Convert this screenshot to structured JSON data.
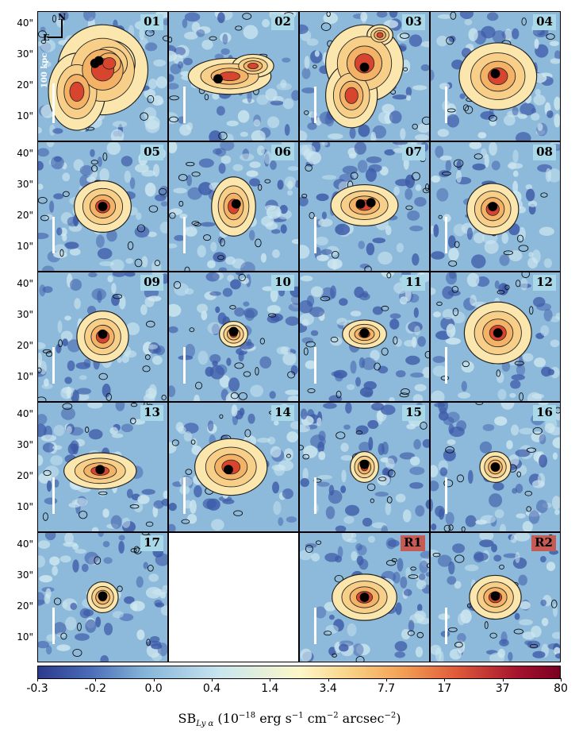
{
  "panels": [
    {
      "label": "01",
      "ref": false,
      "blob": [
        [
          0.5,
          0.45,
          0.35,
          0.35
        ],
        [
          0.3,
          0.62,
          0.22,
          0.3
        ],
        [
          0.55,
          0.4,
          0.2,
          0.18
        ]
      ],
      "core": [
        [
          0.47,
          0.38
        ],
        [
          0.44,
          0.4
        ]
      ],
      "blank": false
    },
    {
      "label": "02",
      "ref": false,
      "blob": [
        [
          0.47,
          0.5,
          0.32,
          0.14
        ],
        [
          0.65,
          0.42,
          0.16,
          0.09
        ]
      ],
      "core": [
        [
          0.38,
          0.52
        ]
      ],
      "blank": false
    },
    {
      "label": "03",
      "ref": false,
      "blob": [
        [
          0.5,
          0.4,
          0.3,
          0.3
        ],
        [
          0.4,
          0.65,
          0.2,
          0.25
        ],
        [
          0.62,
          0.18,
          0.1,
          0.08
        ]
      ],
      "core": [
        [
          0.5,
          0.43
        ]
      ],
      "blank": false
    },
    {
      "label": "04",
      "ref": false,
      "blob": [
        [
          0.52,
          0.5,
          0.3,
          0.26
        ]
      ],
      "core": [
        [
          0.5,
          0.48
        ]
      ],
      "blank": false
    },
    {
      "label": "05",
      "ref": false,
      "blob": [
        [
          0.5,
          0.5,
          0.22,
          0.2
        ]
      ],
      "core": [
        [
          0.5,
          0.5
        ]
      ],
      "blank": false
    },
    {
      "label": "06",
      "ref": false,
      "blob": [
        [
          0.5,
          0.5,
          0.17,
          0.23
        ]
      ],
      "core": [
        [
          0.52,
          0.48
        ]
      ],
      "blank": false
    },
    {
      "label": "07",
      "ref": false,
      "blob": [
        [
          0.5,
          0.49,
          0.26,
          0.16
        ]
      ],
      "core": [
        [
          0.47,
          0.48
        ],
        [
          0.55,
          0.47
        ]
      ],
      "blank": false
    },
    {
      "label": "08",
      "ref": false,
      "blob": [
        [
          0.48,
          0.52,
          0.2,
          0.2
        ]
      ],
      "core": [
        [
          0.48,
          0.5
        ]
      ],
      "blank": false
    },
    {
      "label": "09",
      "ref": false,
      "blob": [
        [
          0.5,
          0.5,
          0.2,
          0.2
        ]
      ],
      "core": [
        [
          0.5,
          0.48
        ]
      ],
      "blank": false
    },
    {
      "label": "10",
      "ref": false,
      "blob": [
        [
          0.5,
          0.48,
          0.11,
          0.1
        ]
      ],
      "core": [
        [
          0.5,
          0.46
        ]
      ],
      "blank": false
    },
    {
      "label": "11",
      "ref": false,
      "blob": [
        [
          0.5,
          0.48,
          0.17,
          0.11
        ]
      ],
      "core": [
        [
          0.5,
          0.47
        ]
      ],
      "blank": false
    },
    {
      "label": "12",
      "ref": false,
      "blob": [
        [
          0.52,
          0.47,
          0.26,
          0.24
        ]
      ],
      "core": [
        [
          0.52,
          0.47
        ]
      ],
      "blank": false
    },
    {
      "label": "13",
      "ref": false,
      "blob": [
        [
          0.48,
          0.53,
          0.28,
          0.14
        ]
      ],
      "core": [
        [
          0.48,
          0.52
        ]
      ],
      "blank": false
    },
    {
      "label": "14",
      "ref": false,
      "blob": [
        [
          0.48,
          0.5,
          0.28,
          0.22
        ]
      ],
      "core": [
        [
          0.46,
          0.52
        ]
      ],
      "blank": false
    },
    {
      "label": "15",
      "ref": false,
      "blob": [
        [
          0.5,
          0.5,
          0.11,
          0.12
        ]
      ],
      "core": [
        [
          0.5,
          0.48
        ]
      ],
      "blank": false
    },
    {
      "label": "16",
      "ref": false,
      "blob": [
        [
          0.5,
          0.5,
          0.12,
          0.12
        ]
      ],
      "core": [
        [
          0.5,
          0.5
        ]
      ],
      "blank": false
    },
    {
      "label": "17",
      "ref": false,
      "blob": [
        [
          0.5,
          0.5,
          0.12,
          0.12
        ]
      ],
      "core": [
        [
          0.5,
          0.49
        ]
      ],
      "blank": false
    },
    {
      "label": "",
      "ref": false,
      "blob": [],
      "core": [],
      "blank": true
    },
    {
      "label": "R1",
      "ref": true,
      "blob": [
        [
          0.5,
          0.5,
          0.25,
          0.18
        ]
      ],
      "core": [
        [
          0.5,
          0.5
        ]
      ],
      "blank": false
    },
    {
      "label": "R2",
      "ref": true,
      "blob": [
        [
          0.5,
          0.5,
          0.2,
          0.17
        ]
      ],
      "core": [
        [
          0.5,
          0.49
        ]
      ],
      "blank": false
    }
  ],
  "y_axis_ticks": [
    "40\"",
    "30\"",
    "20\"",
    "10\""
  ],
  "scale_bar_text": "100 kpc",
  "compass": {
    "north": "N",
    "east": "E"
  },
  "colorbar": {
    "ticks": [
      "-0.3",
      "-0.2",
      "0.0",
      "0.4",
      "1.4",
      "3.4",
      "7.7",
      "17",
      "37",
      "80"
    ],
    "label_main": "SB",
    "label_sub": "Ly α",
    "label_units": " (10",
    "label_exp1": "−18",
    "label_rest1": " erg s",
    "label_exp2": "−1",
    "label_rest2": " cm",
    "label_exp3": "−2",
    "label_rest3": " arcsec",
    "label_exp4": "−2",
    "label_end": ")"
  },
  "colors": {
    "noise_low": "#3d5aa8",
    "noise_mid": "#8dbadb",
    "noise_high": "#cfe8f0",
    "halo_outer": "#fbe7ad",
    "halo_mid": "#f4b266",
    "halo_inner": "#d8452f",
    "core": "#000000"
  }
}
